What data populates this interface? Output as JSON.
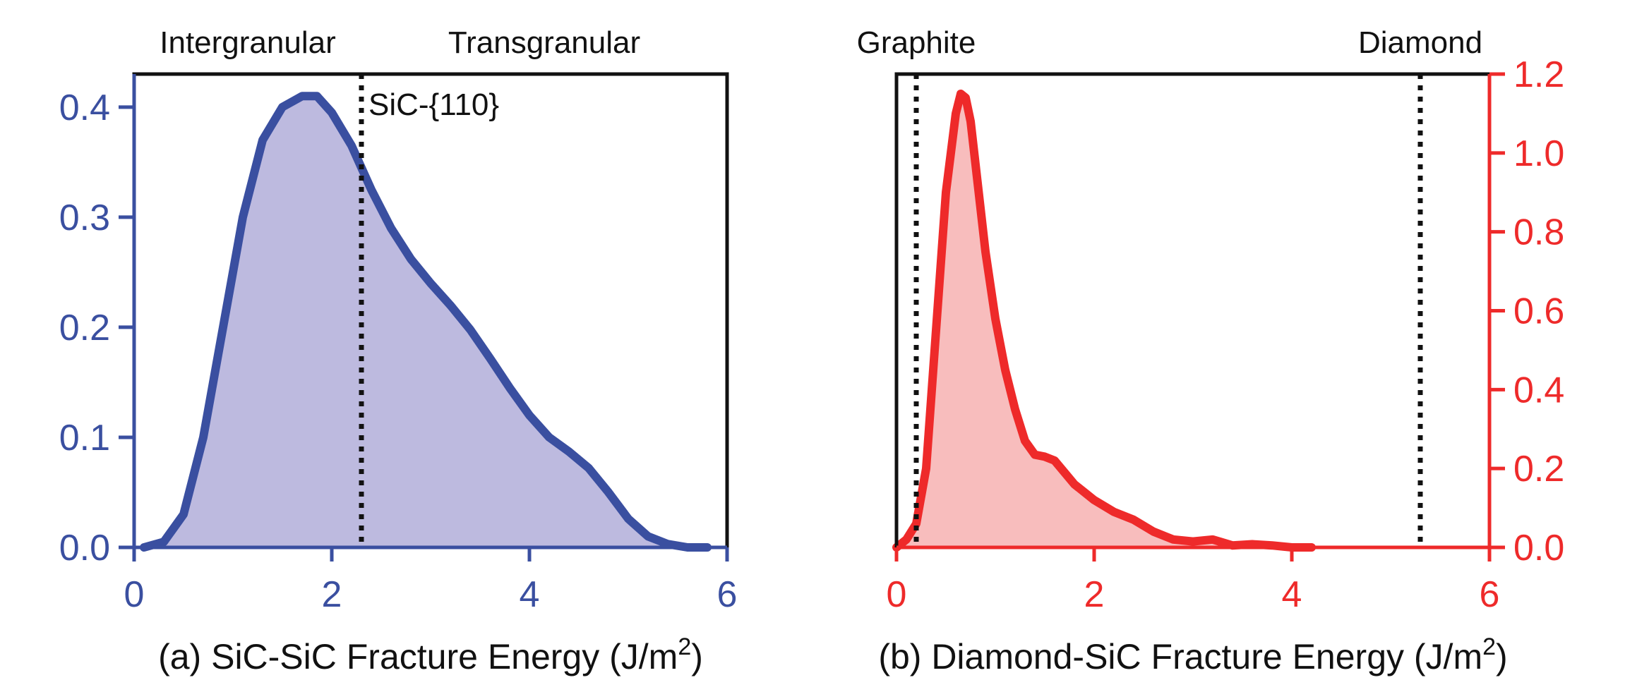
{
  "colors": {
    "blue": "#3A4FA0",
    "blue_fill": "#BDBADF",
    "red": "#EE2A2A",
    "red_fill": "#F8BDBD",
    "black": "#111111"
  },
  "chart_data": [
    {
      "type": "area",
      "id": "a",
      "xlabel_prefix": "(a) SiC-SiC Fracture Energy (J/m",
      "xlabel_sup": "2",
      "xlabel_suffix": ")",
      "xlim": [
        0,
        6
      ],
      "ylim": [
        0,
        0.43
      ],
      "xticks": [
        0,
        2,
        4,
        6
      ],
      "xtick_labels": [
        "0",
        "2",
        "4",
        "6"
      ],
      "yticks": [
        0.0,
        0.1,
        0.2,
        0.3,
        0.4
      ],
      "ytick_labels": [
        "0.0",
        "0.1",
        "0.2",
        "0.3",
        "0.4"
      ],
      "y_axis_side": "left",
      "top_labels": [
        {
          "text": "Intergranular",
          "x": 1.15
        },
        {
          "text": "Transgranular",
          "x": 4.15
        }
      ],
      "vlines": [
        {
          "x": 2.3,
          "label": "SiC-{110}"
        }
      ],
      "series": [
        {
          "name": "SiC-SiC",
          "x": [
            0.1,
            0.3,
            0.5,
            0.7,
            0.9,
            1.1,
            1.3,
            1.5,
            1.7,
            1.85,
            2.0,
            2.2,
            2.4,
            2.6,
            2.8,
            3.0,
            3.2,
            3.4,
            3.6,
            3.8,
            4.0,
            4.2,
            4.4,
            4.6,
            4.8,
            5.0,
            5.2,
            5.4,
            5.6,
            5.8
          ],
          "values": [
            0.0,
            0.005,
            0.03,
            0.1,
            0.2,
            0.3,
            0.37,
            0.4,
            0.41,
            0.41,
            0.395,
            0.365,
            0.325,
            0.29,
            0.262,
            0.24,
            0.22,
            0.198,
            0.172,
            0.145,
            0.12,
            0.1,
            0.087,
            0.072,
            0.05,
            0.026,
            0.01,
            0.003,
            0.0,
            0.0
          ],
          "line_color": "#3A4FA0",
          "fill_color": "#BDBADF"
        }
      ]
    },
    {
      "type": "area",
      "id": "b",
      "xlabel_prefix": "(b) Diamond-SiC Fracture Energy (J/m",
      "xlabel_sup": "2",
      "xlabel_suffix": ")",
      "xlim": [
        0,
        6
      ],
      "ylim": [
        0,
        1.2
      ],
      "xticks": [
        0,
        2,
        4,
        6
      ],
      "xtick_labels": [
        "0",
        "2",
        "4",
        "6"
      ],
      "yticks": [
        0.0,
        0.2,
        0.4,
        0.6,
        0.8,
        1.0,
        1.2
      ],
      "ytick_labels": [
        "0.0",
        "0.2",
        "0.4",
        "0.6",
        "0.8",
        "1.0",
        "1.2"
      ],
      "y_axis_side": "right",
      "top_labels": [
        {
          "text": "Graphite",
          "x": 0.2
        },
        {
          "text": "Diamond",
          "x": 5.3
        }
      ],
      "vlines": [
        {
          "x": 0.2,
          "label": ""
        },
        {
          "x": 5.3,
          "label": ""
        }
      ],
      "series": [
        {
          "name": "Diamond-SiC",
          "x": [
            0.0,
            0.1,
            0.2,
            0.3,
            0.4,
            0.5,
            0.6,
            0.65,
            0.7,
            0.75,
            0.8,
            0.9,
            1.0,
            1.1,
            1.2,
            1.3,
            1.4,
            1.5,
            1.6,
            1.7,
            1.8,
            1.9,
            2.0,
            2.2,
            2.4,
            2.6,
            2.8,
            3.0,
            3.2,
            3.4,
            3.6,
            3.8,
            4.0,
            4.2
          ],
          "values": [
            0.0,
            0.02,
            0.06,
            0.2,
            0.55,
            0.9,
            1.1,
            1.15,
            1.14,
            1.08,
            0.97,
            0.75,
            0.58,
            0.45,
            0.35,
            0.27,
            0.235,
            0.23,
            0.22,
            0.19,
            0.16,
            0.14,
            0.12,
            0.09,
            0.07,
            0.04,
            0.02,
            0.015,
            0.02,
            0.005,
            0.008,
            0.005,
            0.0,
            0.0
          ],
          "line_color": "#EE2A2A",
          "fill_color": "#F8BDBD"
        }
      ]
    }
  ]
}
